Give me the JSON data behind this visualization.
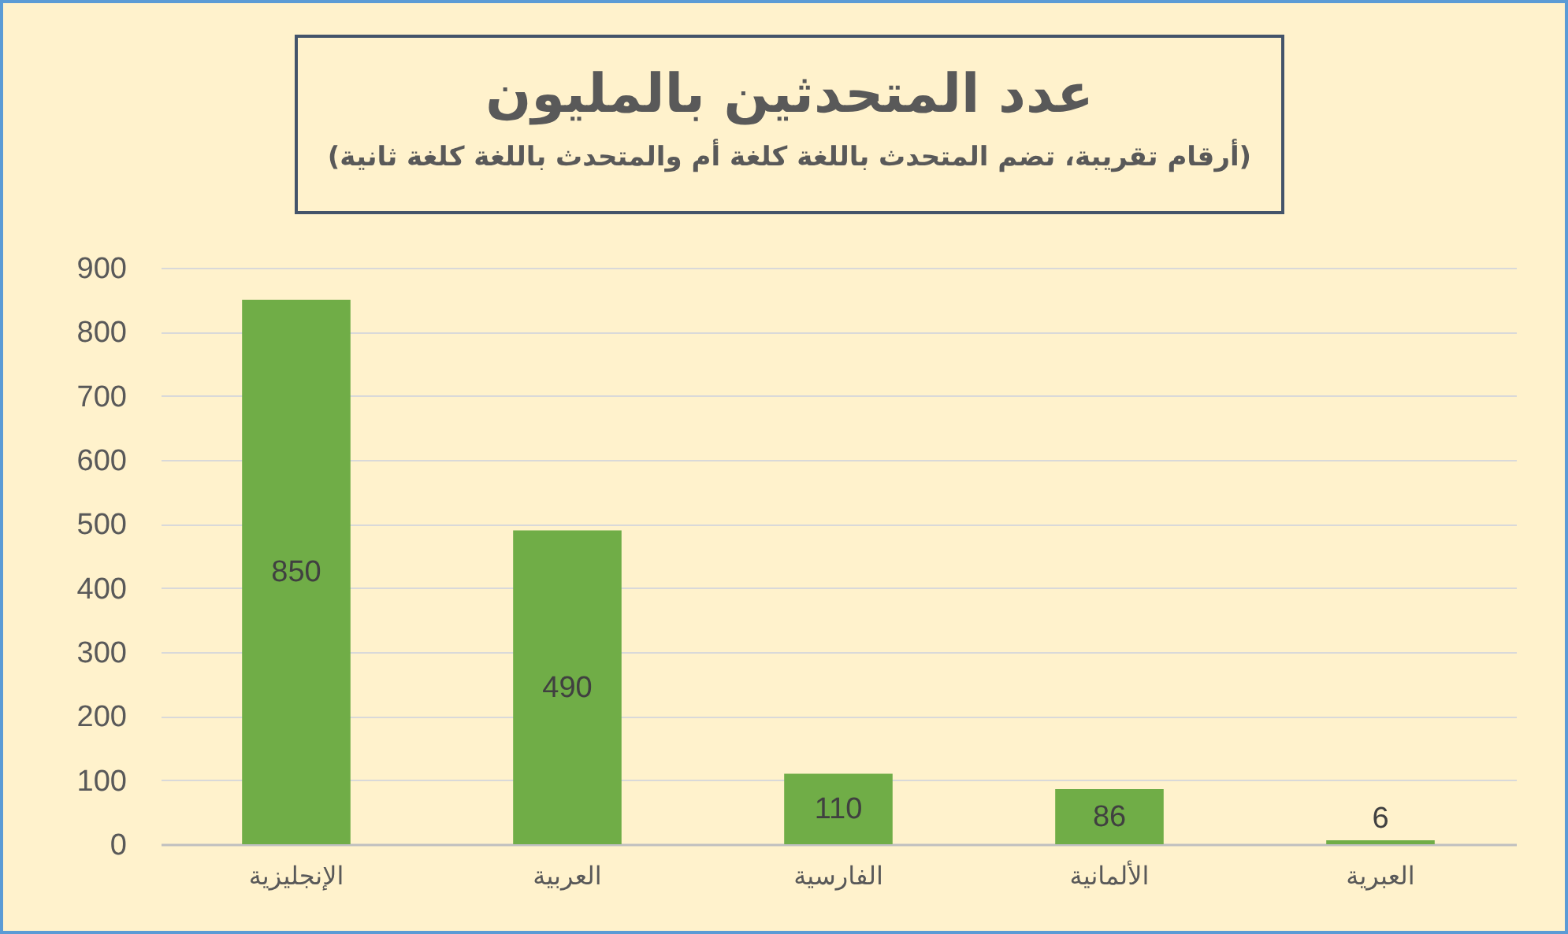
{
  "chart_data": {
    "type": "bar",
    "title": "عدد المتحدثين بالمليون",
    "subtitle": "(أرقام تقريبة، تضم المتحدث باللغة كلغة أم والمتحدث باللغة كلغة ثانية)",
    "categories": [
      "الإنجليزية",
      "العربية",
      "الفارسية",
      "الألمانية",
      "العبرية"
    ],
    "values": [
      850,
      490,
      110,
      86,
      6
    ],
    "color": "#70ad47",
    "data_labels": true,
    "ylim": [
      0,
      900
    ],
    "yticks": [
      0,
      100,
      200,
      300,
      400,
      500,
      600,
      700,
      800,
      900
    ],
    "grid": "y"
  }
}
